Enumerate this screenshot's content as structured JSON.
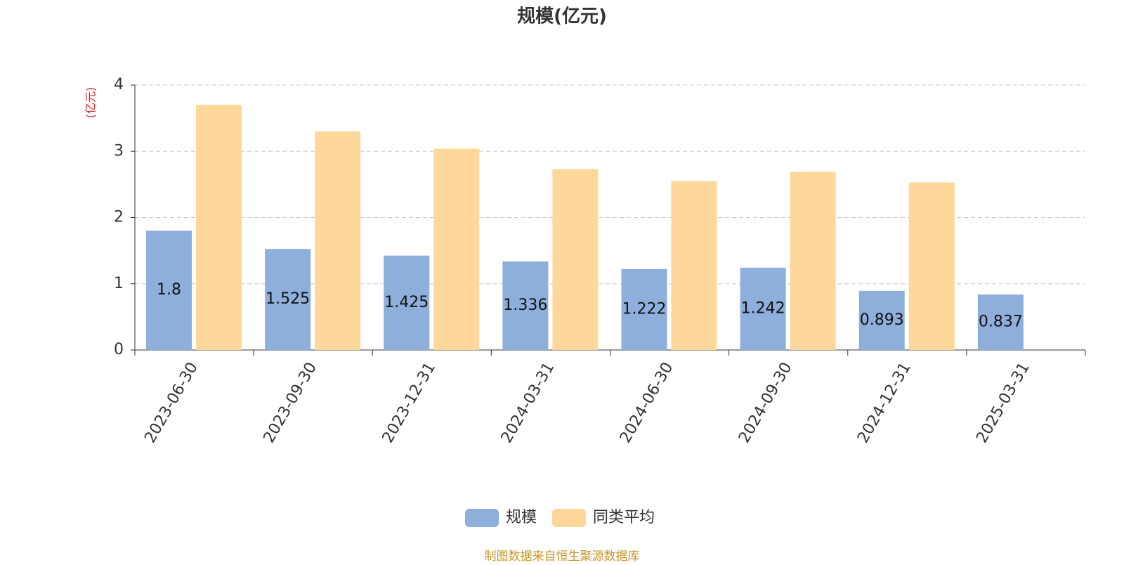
{
  "chart_data": {
    "type": "bar",
    "title": "规模(亿元)",
    "y_axis_label": "(亿元)",
    "categories": [
      "2023-06-30",
      "2023-09-30",
      "2023-12-31",
      "2024-03-31",
      "2024-06-30",
      "2024-09-30",
      "2024-12-31",
      "2025-03-31"
    ],
    "series": [
      {
        "name": "规模",
        "color": "#8eaedc",
        "labels": true,
        "values": [
          1.8,
          1.525,
          1.425,
          1.336,
          1.222,
          1.242,
          0.893,
          0.837
        ]
      },
      {
        "name": "同类平均",
        "color": "#fdd89a",
        "labels": false,
        "values": [
          3.7,
          3.3,
          3.04,
          2.73,
          2.55,
          2.69,
          2.53,
          null
        ]
      }
    ],
    "ylim": [
      0,
      4
    ],
    "yticks": [
      0,
      1,
      2,
      3,
      4
    ],
    "grid": true,
    "source": "制图数据来自恒生聚源数据库"
  }
}
